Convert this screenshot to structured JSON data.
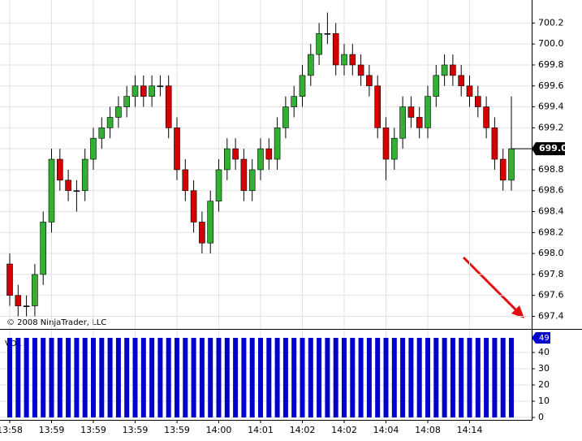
{
  "chart_data": {
    "type": "candlestick",
    "copyright": "© 2008 NinjaTrader, LLC",
    "categories": [
      "13:58",
      null,
      null,
      null,
      null,
      "13:59",
      null,
      null,
      null,
      null,
      "13:59",
      null,
      null,
      null,
      null,
      "13:59",
      null,
      null,
      null,
      null,
      "13:59",
      null,
      null,
      null,
      null,
      "14:00",
      null,
      null,
      null,
      null,
      "14:01",
      null,
      null,
      null,
      null,
      "14:02",
      null,
      null,
      null,
      null,
      "14:02",
      null,
      null,
      null,
      null,
      "14:04",
      null,
      null,
      null,
      null,
      "14:08",
      null,
      null,
      null,
      null,
      "14:14",
      null,
      null,
      null,
      null,
      null
    ],
    "open": [
      697.9,
      697.6,
      697.5,
      697.5,
      697.8,
      698.3,
      698.9,
      698.7,
      698.6,
      698.6,
      698.9,
      699.1,
      699.2,
      699.3,
      699.4,
      699.5,
      699.6,
      699.5,
      699.6,
      699.6,
      699.2,
      698.8,
      698.6,
      698.3,
      698.1,
      698.5,
      698.8,
      699.0,
      698.9,
      698.6,
      698.8,
      699.0,
      698.9,
      699.2,
      699.4,
      699.5,
      699.7,
      699.9,
      700.1,
      700.1,
      699.8,
      699.9,
      699.8,
      699.7,
      699.6,
      699.2,
      698.9,
      699.1,
      699.4,
      699.3,
      699.2,
      699.5,
      699.7,
      699.8,
      699.7,
      699.6,
      699.5,
      699.4,
      699.2,
      698.9,
      698.7
    ],
    "high": [
      698.0,
      697.7,
      697.6,
      697.9,
      698.4,
      699.0,
      699.0,
      698.8,
      698.7,
      699.0,
      699.2,
      699.3,
      699.4,
      699.5,
      699.6,
      699.7,
      699.7,
      699.7,
      699.7,
      699.7,
      699.3,
      698.9,
      698.7,
      698.4,
      698.6,
      698.9,
      699.1,
      699.1,
      699.0,
      698.9,
      699.1,
      699.1,
      699.3,
      699.5,
      699.6,
      699.8,
      700.0,
      700.2,
      700.3,
      700.2,
      700.0,
      700.0,
      699.9,
      699.8,
      699.7,
      699.3,
      699.2,
      699.5,
      699.5,
      699.4,
      699.6,
      699.8,
      699.9,
      699.9,
      699.8,
      699.7,
      699.6,
      699.5,
      699.3,
      699.0,
      699.5
    ],
    "low": [
      697.5,
      697.4,
      697.4,
      697.4,
      697.7,
      698.2,
      698.6,
      698.5,
      698.4,
      698.5,
      698.8,
      699.0,
      699.1,
      699.2,
      699.3,
      699.4,
      699.4,
      699.4,
      699.5,
      699.1,
      698.7,
      698.5,
      698.2,
      698.0,
      698.0,
      698.4,
      698.7,
      698.8,
      698.5,
      698.5,
      698.7,
      698.8,
      698.8,
      699.1,
      699.3,
      699.4,
      699.6,
      699.8,
      700.0,
      699.7,
      699.7,
      699.7,
      699.6,
      699.5,
      699.1,
      698.7,
      698.8,
      699.0,
      699.2,
      699.1,
      699.1,
      699.4,
      699.6,
      699.6,
      699.5,
      699.4,
      699.3,
      699.1,
      698.8,
      698.6,
      698.6
    ],
    "close": [
      697.6,
      697.5,
      697.5,
      697.8,
      698.3,
      698.9,
      698.7,
      698.6,
      698.6,
      698.9,
      699.1,
      699.2,
      699.3,
      699.4,
      699.5,
      699.6,
      699.5,
      699.6,
      699.6,
      699.2,
      698.8,
      698.6,
      698.3,
      698.1,
      698.5,
      698.8,
      699.0,
      698.9,
      698.6,
      698.8,
      699.0,
      698.9,
      699.2,
      699.4,
      699.5,
      699.7,
      699.9,
      700.1,
      700.1,
      699.8,
      699.9,
      699.8,
      699.7,
      699.6,
      699.2,
      698.9,
      699.1,
      699.4,
      699.3,
      699.2,
      699.5,
      699.7,
      699.8,
      699.7,
      699.6,
      699.5,
      699.4,
      699.2,
      698.9,
      698.7,
      699.0
    ],
    "up_color": "#33b033",
    "down_color": "#d40000",
    "ylim": [
      697.28,
      700.42
    ],
    "yticks": [
      697.4,
      697.6,
      697.8,
      {
        "value": 698,
        "label": "698.0"
      },
      698.2,
      698.4,
      698.6,
      698.8,
      {
        "value": 699,
        "label": "699.0"
      },
      699.2,
      699.4,
      699.6,
      699.8,
      {
        "value": 700,
        "label": "700.0"
      },
      700.2
    ],
    "last_price": {
      "value": 699,
      "label": "699.0"
    },
    "volume": {
      "label": "VOL",
      "color": "#0000cc",
      "values": [
        49,
        49,
        49,
        49,
        49,
        49,
        49,
        49,
        49,
        49,
        49,
        49,
        49,
        49,
        49,
        49,
        49,
        49,
        49,
        49,
        49,
        49,
        49,
        49,
        49,
        49,
        49,
        49,
        49,
        49,
        49,
        49,
        49,
        49,
        49,
        49,
        49,
        49,
        49,
        49,
        49,
        49,
        49,
        49,
        49,
        49,
        49,
        49,
        49,
        49,
        49,
        49,
        49,
        49,
        49,
        49,
        49,
        49,
        49,
        49,
        49
      ],
      "ylim": [
        0,
        53.5
      ],
      "yticks": [
        0,
        10,
        20,
        30,
        40
      ],
      "last": 49
    },
    "grid": true
  }
}
